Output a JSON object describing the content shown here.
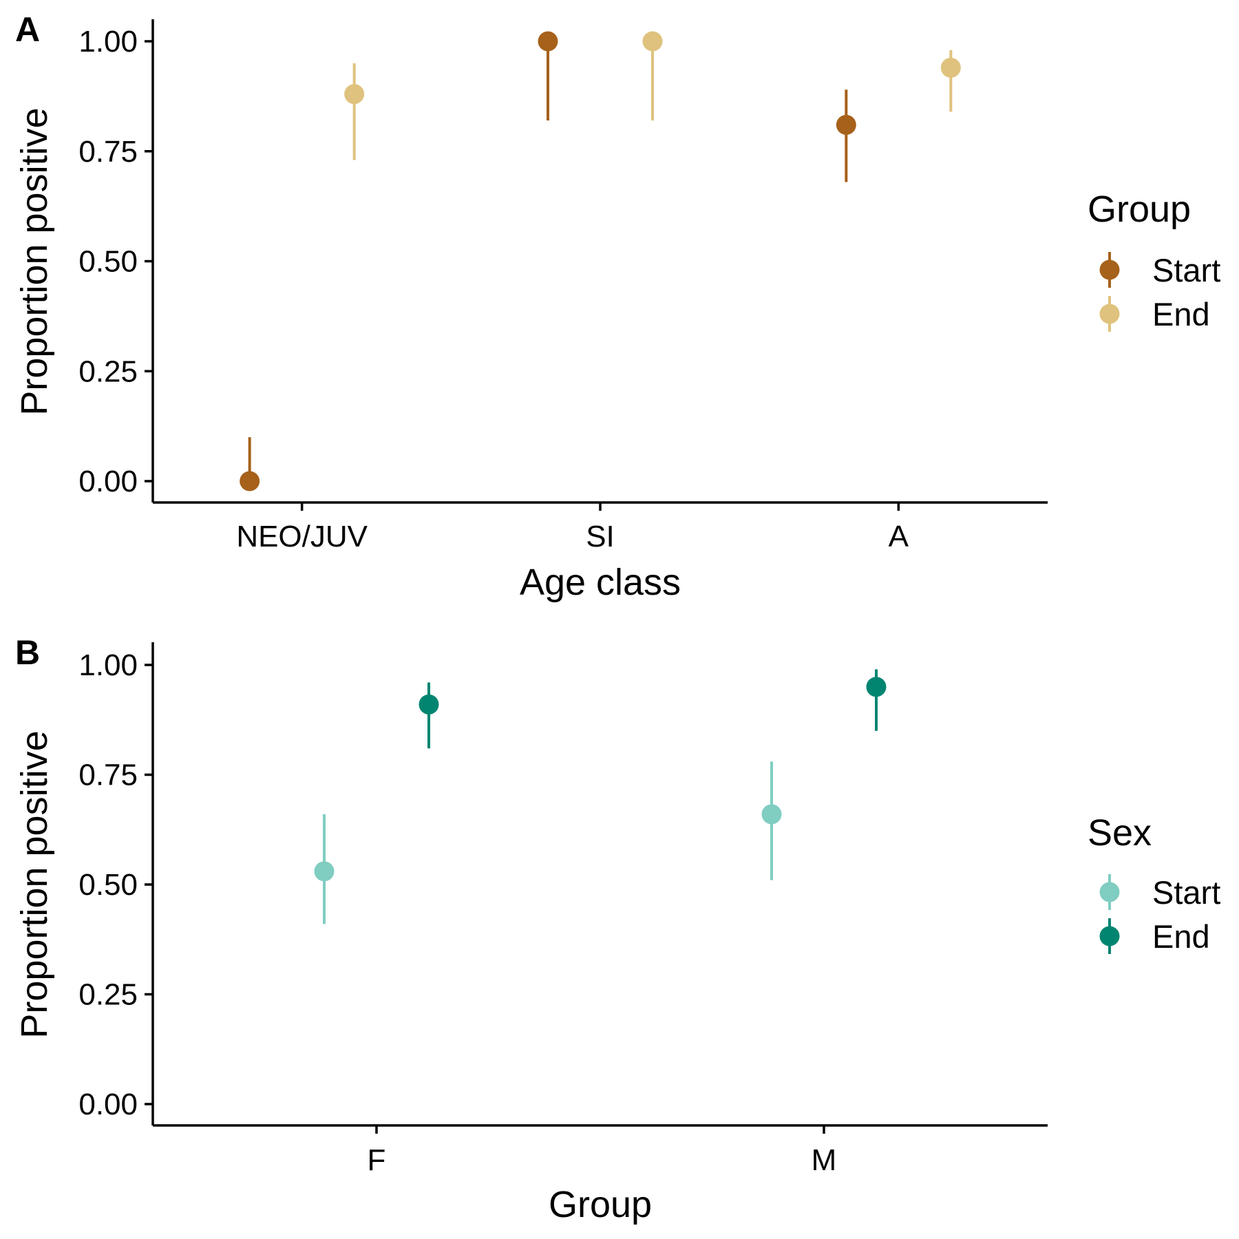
{
  "chart_data": [
    {
      "type": "scatter",
      "panel_tag": "A",
      "xlabel": "Age class",
      "ylabel": "Proportion positive",
      "categories": [
        "NEO/JUV",
        "SI",
        "A"
      ],
      "yticks": [
        "0.00",
        "0.25",
        "0.50",
        "0.75",
        "1.00"
      ],
      "ylim": [
        0,
        1
      ],
      "grid": false,
      "legend": {
        "title": "Group",
        "placement": "right",
        "entries": [
          "Start",
          "End"
        ]
      },
      "series": [
        {
          "name": "Start",
          "color": "#A6611A",
          "points": [
            {
              "category": "NEO/JUV",
              "y": 0.0,
              "lower": 0.0,
              "upper": 0.1
            },
            {
              "category": "SI",
              "y": 1.0,
              "lower": 0.82,
              "upper": 1.0
            },
            {
              "category": "A",
              "y": 0.81,
              "lower": 0.68,
              "upper": 0.89
            }
          ]
        },
        {
          "name": "End",
          "color": "#DFC27D",
          "points": [
            {
              "category": "NEO/JUV",
              "y": 0.88,
              "lower": 0.73,
              "upper": 0.95
            },
            {
              "category": "SI",
              "y": 1.0,
              "lower": 0.82,
              "upper": 1.0
            },
            {
              "category": "A",
              "y": 0.94,
              "lower": 0.84,
              "upper": 0.98
            }
          ]
        }
      ]
    },
    {
      "type": "scatter",
      "panel_tag": "B",
      "xlabel": "Group",
      "ylabel": "Proportion positive",
      "categories": [
        "F",
        "M"
      ],
      "yticks": [
        "0.00",
        "0.25",
        "0.50",
        "0.75",
        "1.00"
      ],
      "ylim": [
        0,
        1
      ],
      "grid": false,
      "legend": {
        "title": "Sex",
        "placement": "right",
        "entries": [
          "Start",
          "End"
        ]
      },
      "series": [
        {
          "name": "Start",
          "color": "#80CDC1",
          "points": [
            {
              "category": "F",
              "y": 0.53,
              "lower": 0.41,
              "upper": 0.66
            },
            {
              "category": "M",
              "y": 0.66,
              "lower": 0.51,
              "upper": 0.78
            }
          ]
        },
        {
          "name": "End",
          "color": "#018571",
          "points": [
            {
              "category": "F",
              "y": 0.91,
              "lower": 0.81,
              "upper": 0.96
            },
            {
              "category": "M",
              "y": 0.95,
              "lower": 0.85,
              "upper": 0.99
            }
          ]
        }
      ]
    }
  ]
}
